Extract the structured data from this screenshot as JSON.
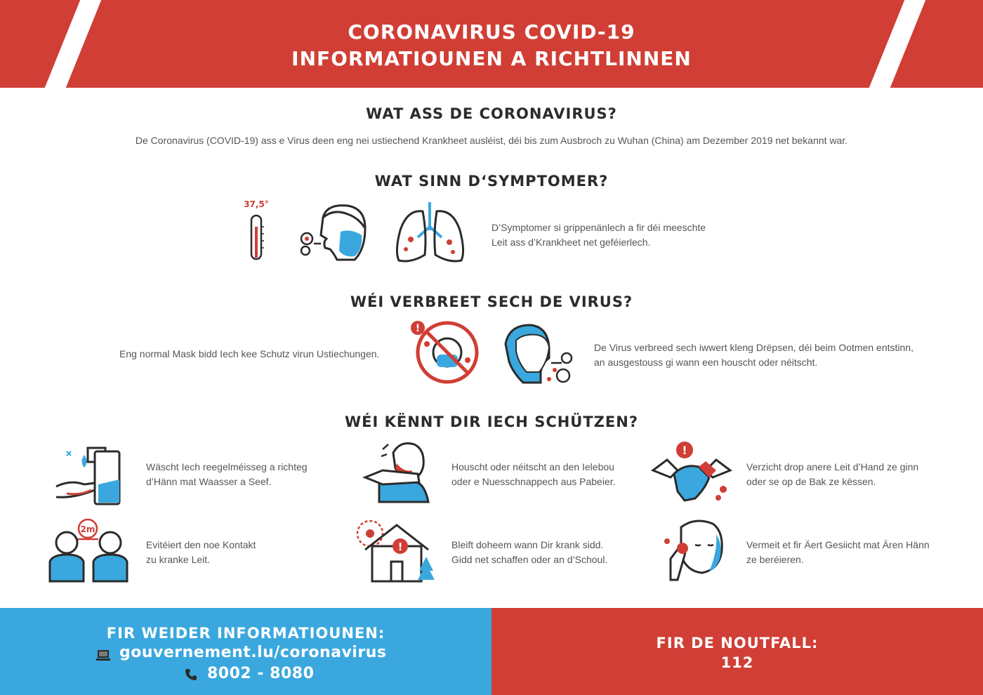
{
  "header": {
    "title_line1": "CORONAVIRUS COVID-19",
    "title_line2": "INFORMATIOUNEN A RICHTLINNEN"
  },
  "what": {
    "heading": "WAT ASS DE CORONAVIRUS?",
    "text": "De Coronavirus (COVID-19) ass e Virus deen eng nei ustiechend Krankheet ausléist, déi bis zum Ausbroch zu Wuhan (China) am Dezember 2019 net bekannt war."
  },
  "symptoms": {
    "heading": "WAT SINN D‘SYMPTOMER?",
    "temperature": "37,5°",
    "text_line1": "D’Symptomer si grippenänlech a fir déi meeschte",
    "text_line2": "Leit ass d’Krankheet net geféierlech."
  },
  "spread": {
    "heading": "WÉI VERBREET SECH DE VIRUS?",
    "mask_text": "Eng normal Mask bidd Iech kee Schutz virun Ustiechungen.",
    "text_line1": "De Virus verbreed sech iwwert kleng Drëpsen, déi beim Ootmen entstinn,",
    "text_line2": "an ausgestouss gi wann een houscht oder néitscht."
  },
  "protect": {
    "heading": "WÉI KËNNT DIR IECH SCHÜTZEN?",
    "items": [
      {
        "line1": "Wäscht Iech reegelméisseg a richteg",
        "line2": "d’Hänn mat Waasser a Seef."
      },
      {
        "line1": "Houscht oder néitscht an den Ielebou",
        "line2": "oder e Nuesschnappech aus Pabeier."
      },
      {
        "line1": "Verzicht drop anere Leit d’Hand ze ginn",
        "line2": "oder se op de Bak ze këssen."
      },
      {
        "line1": "Evitéiert den noe Kontakt",
        "line2": "zu kranke Leit."
      },
      {
        "line1": "Bleift doheem wann Dir krank sidd.",
        "line2": "Gidd net schaffen oder an d’Schoul."
      },
      {
        "line1": "Vermeit et fir Äert Gesiicht mat Ären Hänn",
        "line2": "ze beréieren."
      }
    ],
    "distance_label": "2m"
  },
  "footer": {
    "info_heading": "FIR WEIDER INFORMATIOUNEN:",
    "website": "gouvernement.lu/coronavirus",
    "phone": "8002 - 8080",
    "emergency_heading": "FIR DE NOUTFALL:",
    "emergency_number": "112"
  },
  "icons": [
    "thermometer-icon",
    "cough-face-icon",
    "lungs-icon",
    "no-mask-icon",
    "sneeze-face-icon",
    "handwash-icon",
    "elbow-cough-icon",
    "no-handshake-icon",
    "distance-icon",
    "stay-home-icon",
    "face-touch-icon",
    "laptop-icon",
    "phone-icon"
  ],
  "colors": {
    "red": "#d03e35",
    "blue": "#3aa8de",
    "dark": "#2b2b2b"
  }
}
